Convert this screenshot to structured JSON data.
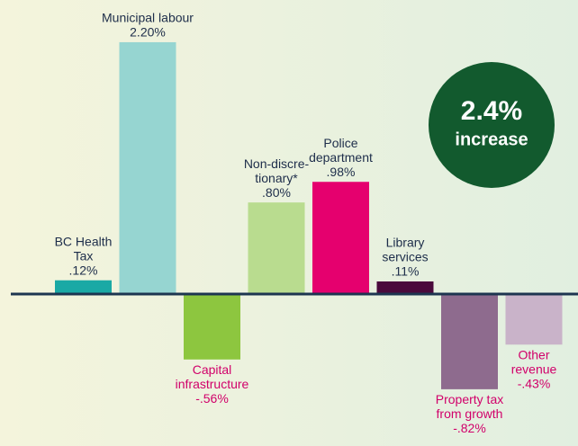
{
  "chart_data": {
    "type": "bar",
    "categories": [
      [
        "BC Health",
        "Tax"
      ],
      [
        "Municipal labour"
      ],
      [
        "Capital",
        "infrastructure"
      ],
      [
        "Non-discre-",
        "tionary*"
      ],
      [
        "Police",
        "department"
      ],
      [
        "Library",
        "services"
      ],
      [
        "Property tax",
        "from growth"
      ],
      [
        "Other",
        "revenue"
      ]
    ],
    "values": [
      0.12,
      2.2,
      -0.56,
      0.8,
      0.98,
      0.11,
      -0.82,
      -0.43
    ],
    "value_labels": [
      ".12%",
      "2.20%",
      "-.56%",
      ".80%",
      ".98%",
      ".11%",
      "-.82%",
      "-.43%"
    ],
    "colors": [
      "#1aa9a5",
      "#96d5d1",
      "#8dc63f",
      "#b9dc8f",
      "#e5006e",
      "#4a0a3c",
      "#8e6b8e",
      "#c9b3c9"
    ],
    "positive_label_color": "#1d2d4a",
    "negative_label_color": "#d1006a",
    "badge": [
      "2.4%",
      "increase"
    ],
    "badge_color": "#125a2e"
  }
}
